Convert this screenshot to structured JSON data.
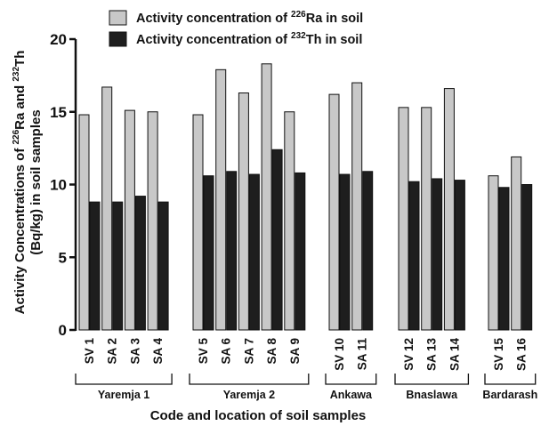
{
  "chart_data": {
    "type": "bar",
    "title": "",
    "xlabel": "Code and location of soil samples",
    "ylabel_line1_prefix": "Activity Concentrations of ",
    "ylabel_line1_sup1": "226",
    "ylabel_line1_mid": "Ra and ",
    "ylabel_line1_sup2": "232",
    "ylabel_line1_suffix": "Th",
    "ylabel_line2": "(Bq/kg) in soil samples",
    "ylim": [
      0,
      20
    ],
    "yticks": [
      "0",
      "5",
      "10",
      "15",
      "20"
    ],
    "grid": false,
    "legend_position": "top-left",
    "colors": {
      "ra": "#c8c8c8",
      "th": "#1e1e1e",
      "stroke": "#111111"
    },
    "legend": [
      {
        "prefix": "Activity concentration of ",
        "sup": "226",
        "suffix": "Ra in soil"
      },
      {
        "prefix": "Activity concentration of ",
        "sup": "232",
        "suffix": "Th in soil"
      }
    ],
    "groups": [
      {
        "label": "Yaremja 1",
        "categories": [
          "SV 1",
          "SA 2",
          "SA 3",
          "SA 4"
        ]
      },
      {
        "label": "Yaremja 2",
        "categories": [
          "SV 5",
          "SA 6",
          "SA 7",
          "SA 8",
          "SA 9"
        ]
      },
      {
        "label": "Ankawa",
        "categories": [
          "SV 10",
          "SA 11"
        ]
      },
      {
        "label": "Bnaslawa",
        "categories": [
          "SV 12",
          "SA 13",
          "SA 14"
        ]
      },
      {
        "label": "Bardarash",
        "categories": [
          "SV 15",
          "SA 16"
        ]
      }
    ],
    "categories": [
      "SV 1",
      "SA 2",
      "SA 3",
      "SA 4",
      "SV 5",
      "SA 6",
      "SA 7",
      "SA 8",
      "SA 9",
      "SV 10",
      "SA 11",
      "SV 12",
      "SA 13",
      "SA 14",
      "SV 15",
      "SA 16"
    ],
    "series": [
      {
        "name": "Activity concentration of 226Ra in soil",
        "values": [
          14.8,
          16.7,
          15.1,
          15.0,
          14.8,
          17.9,
          16.3,
          18.3,
          15.0,
          16.2,
          17.0,
          15.3,
          15.3,
          16.6,
          10.6,
          11.9
        ]
      },
      {
        "name": "Activity concentration of 232Th in soil",
        "values": [
          8.8,
          8.8,
          9.2,
          8.8,
          10.6,
          10.9,
          10.7,
          12.4,
          10.8,
          10.7,
          10.9,
          10.2,
          10.4,
          10.3,
          9.8,
          10.0
        ]
      }
    ]
  }
}
